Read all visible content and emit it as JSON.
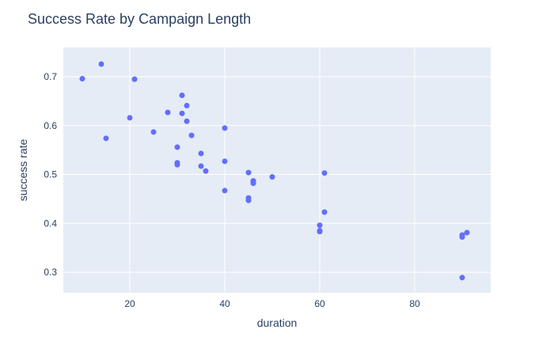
{
  "colors": {
    "plot_bg": "#e5ecf6",
    "grid": "#ffffff",
    "point": "#636efa",
    "text": "#2a3f5f"
  },
  "chart_data": {
    "type": "scatter",
    "title": "Success Rate by Campaign Length",
    "xlabel": "duration",
    "ylabel": "success rate",
    "xlim": [
      6,
      96
    ],
    "ylim": [
      0.258,
      0.76
    ],
    "xticks": [
      20,
      40,
      60,
      80
    ],
    "yticks": [
      0.3,
      0.4,
      0.5,
      0.6,
      0.7
    ],
    "xtick_labels": [
      "20",
      "40",
      "60",
      "80"
    ],
    "ytick_labels": [
      "0.3",
      "0.4",
      "0.5",
      "0.6",
      "0.7"
    ],
    "grid": true,
    "legend": false,
    "points": [
      {
        "x": 10,
        "y": 0.696
      },
      {
        "x": 14,
        "y": 0.726
      },
      {
        "x": 15,
        "y": 0.574
      },
      {
        "x": 20,
        "y": 0.616
      },
      {
        "x": 21,
        "y": 0.695
      },
      {
        "x": 25,
        "y": 0.587
      },
      {
        "x": 28,
        "y": 0.627
      },
      {
        "x": 30,
        "y": 0.556
      },
      {
        "x": 30,
        "y": 0.524
      },
      {
        "x": 30,
        "y": 0.52
      },
      {
        "x": 31,
        "y": 0.662
      },
      {
        "x": 31,
        "y": 0.625
      },
      {
        "x": 32,
        "y": 0.641
      },
      {
        "x": 32,
        "y": 0.609
      },
      {
        "x": 33,
        "y": 0.58
      },
      {
        "x": 35,
        "y": 0.543
      },
      {
        "x": 35,
        "y": 0.517
      },
      {
        "x": 36,
        "y": 0.507
      },
      {
        "x": 40,
        "y": 0.595
      },
      {
        "x": 40,
        "y": 0.527
      },
      {
        "x": 40,
        "y": 0.467
      },
      {
        "x": 45,
        "y": 0.504
      },
      {
        "x": 45,
        "y": 0.452
      },
      {
        "x": 45,
        "y": 0.447
      },
      {
        "x": 46,
        "y": 0.487
      },
      {
        "x": 46,
        "y": 0.482
      },
      {
        "x": 50,
        "y": 0.495
      },
      {
        "x": 60,
        "y": 0.396
      },
      {
        "x": 60,
        "y": 0.385
      },
      {
        "x": 60,
        "y": 0.383
      },
      {
        "x": 61,
        "y": 0.503
      },
      {
        "x": 61,
        "y": 0.423
      },
      {
        "x": 90,
        "y": 0.376
      },
      {
        "x": 90,
        "y": 0.372
      },
      {
        "x": 90,
        "y": 0.289
      },
      {
        "x": 91,
        "y": 0.381
      }
    ]
  }
}
